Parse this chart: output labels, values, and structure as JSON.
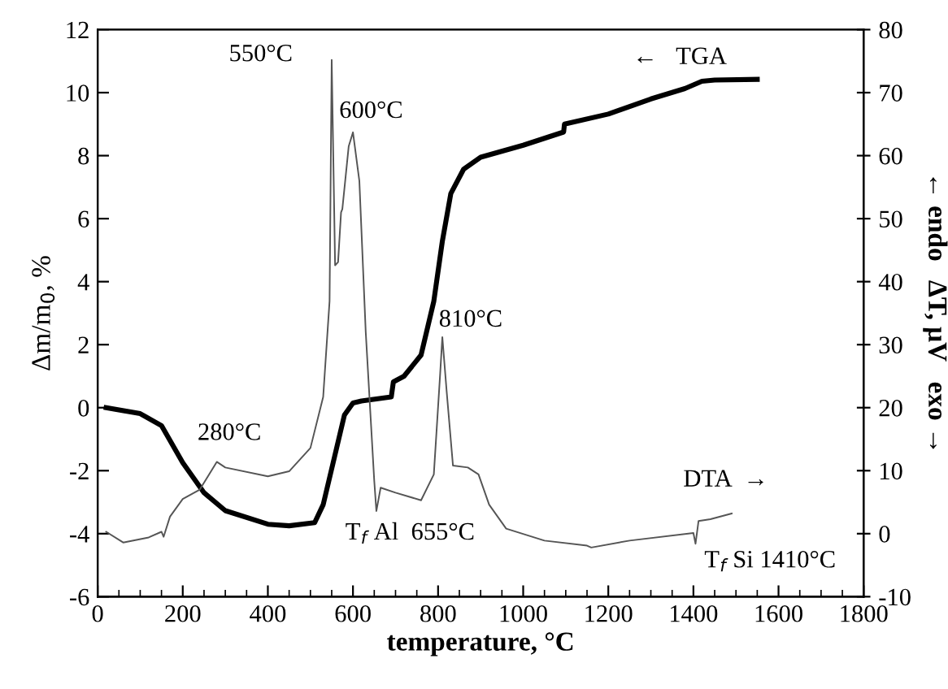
{
  "chart_data": {
    "type": "line",
    "xlabel": "temperature, °C",
    "ylabel": "Δm/m$_{0}$, %",
    "y2label": "← endo   ΔT, μV   exo →",
    "xlim": [
      0,
      1800
    ],
    "xticks": [
      0,
      200,
      400,
      600,
      800,
      1000,
      1200,
      1400,
      1600,
      1800
    ],
    "ylim": [
      -6,
      12
    ],
    "yticks": [
      -6,
      -4,
      -2,
      0,
      2,
      4,
      6,
      8,
      10,
      12
    ],
    "y2lim": [
      -10,
      80
    ],
    "y2ticks": [
      -10,
      0,
      10,
      20,
      30,
      40,
      50,
      60,
      70,
      80
    ],
    "grid": false,
    "legend": false,
    "marker": "none",
    "line_style": "solid",
    "series": [
      {
        "color": "#000000",
        "x": [
          20,
          100,
          150,
          200,
          250,
          300,
          400,
          450,
          510,
          530,
          560,
          580,
          600,
          620,
          690,
          695,
          720,
          760,
          790,
          810,
          830,
          860,
          900,
          1000,
          1095,
          1097,
          1200,
          1300,
          1380,
          1420,
          1450,
          1550
        ],
        "values": [
          0,
          -0.19,
          -0.57,
          -1.75,
          -2.7,
          -3.27,
          -3.7,
          -3.75,
          -3.65,
          -3.08,
          -1.37,
          -0.23,
          0.15,
          0.21,
          0.34,
          0.82,
          1.0,
          1.67,
          3.38,
          5.28,
          6.8,
          7.57,
          7.95,
          8.33,
          8.75,
          9.0,
          9.32,
          9.8,
          10.13,
          10.36,
          10.4,
          10.42
        ]
      },
      {
        "color": "#555555",
        "axis": "y2",
        "x": [
          20,
          60,
          120,
          150,
          155,
          170,
          200,
          240,
          280,
          300,
          400,
          450,
          500,
          530,
          545,
          550,
          558,
          565,
          572,
          575,
          590,
          600,
          615,
          630,
          650,
          655,
          665,
          700,
          760,
          790,
          805,
          810,
          820,
          835,
          870,
          895,
          920,
          960,
          1050,
          1150,
          1160,
          1250,
          1400,
          1405,
          1412,
          1440,
          1490
        ],
        "values": [
          0.3,
          -1.4,
          -0.6,
          0.3,
          -0.5,
          2.7,
          5.5,
          7,
          11.4,
          10.5,
          9.1,
          9.9,
          13.6,
          21.7,
          36.9,
          75.2,
          42.6,
          43.1,
          51,
          51.5,
          61.5,
          63.7,
          56,
          32,
          8.4,
          3.6,
          7.3,
          6.5,
          5.3,
          9.4,
          25.5,
          31.2,
          22.7,
          10.8,
          10.5,
          9.4,
          4.6,
          0.8,
          -1.1,
          -1.9,
          -2.2,
          -1.1,
          0.1,
          -1.6,
          2.0,
          2.3,
          3.2
        ]
      }
    ],
    "annotations": [
      "550°C",
      "600°C",
      "280°C",
      "810°C",
      "T$_{f}$ Al  655°C",
      "T$_{f}$ Si 1410°C",
      "←   TGA",
      "DTA  →"
    ]
  }
}
